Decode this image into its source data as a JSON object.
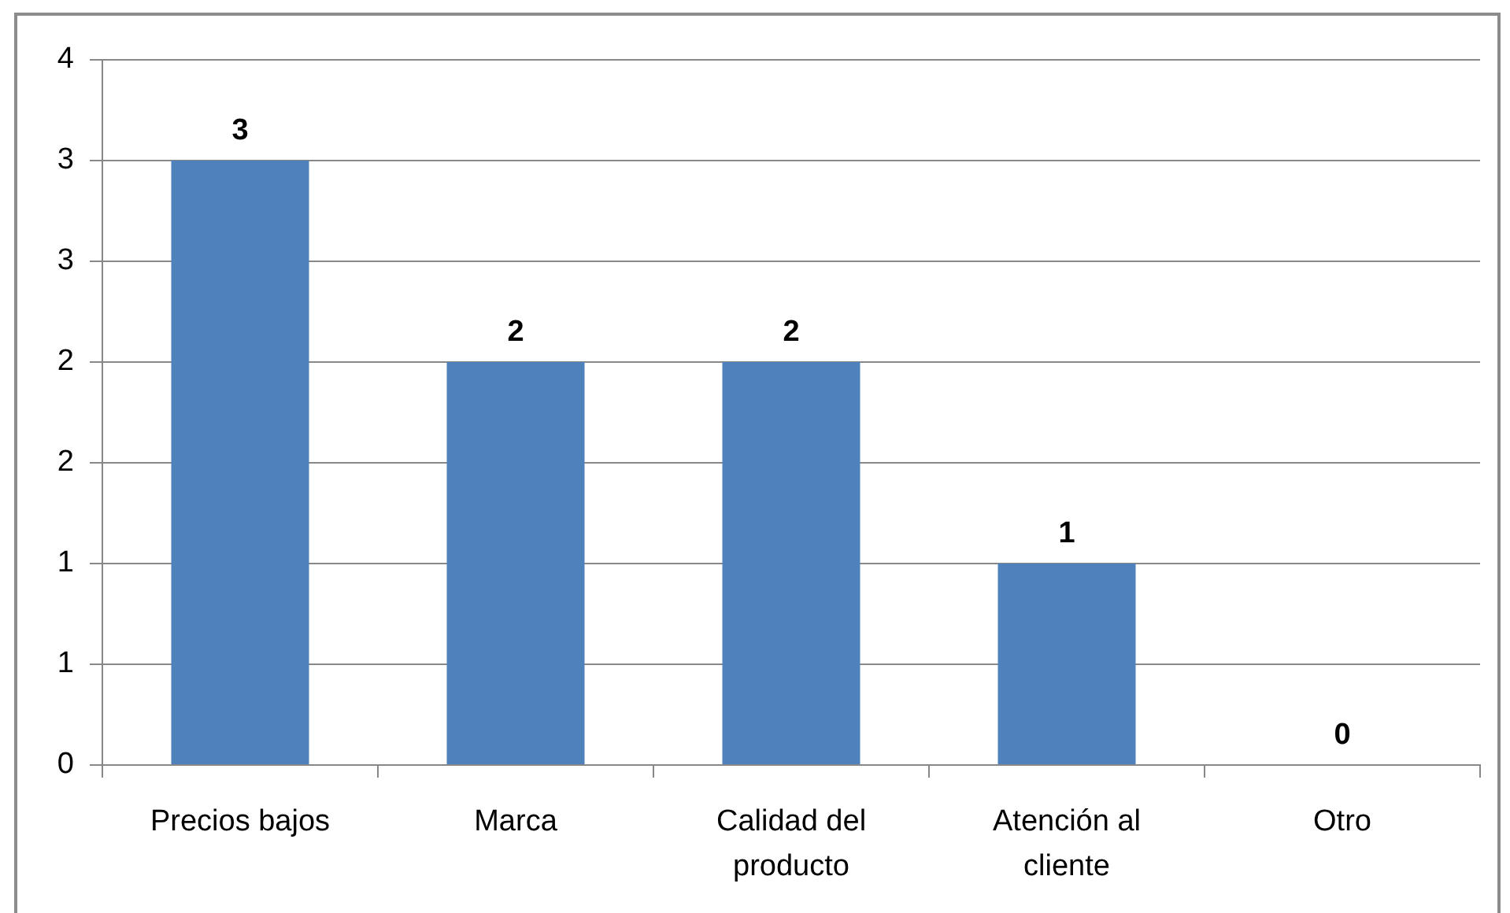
{
  "chart_data": {
    "type": "bar",
    "categories": [
      "Precios bajos",
      "Marca",
      "Calidad del producto",
      "Atención al cliente",
      "Otro"
    ],
    "values": [
      3,
      2,
      2,
      1,
      0
    ],
    "color": "#4f81bd",
    "ylim": [
      0,
      3.5
    ],
    "yticks": [
      0,
      {
        "value": 0.5,
        "label": "1"
      },
      1,
      {
        "value": 1.5,
        "label": "2"
      },
      2,
      {
        "value": 2.5,
        "label": "3"
      },
      3,
      {
        "value": 3.5,
        "label": "4"
      }
    ],
    "grid": "y",
    "data_labels": true,
    "legend": false
  }
}
